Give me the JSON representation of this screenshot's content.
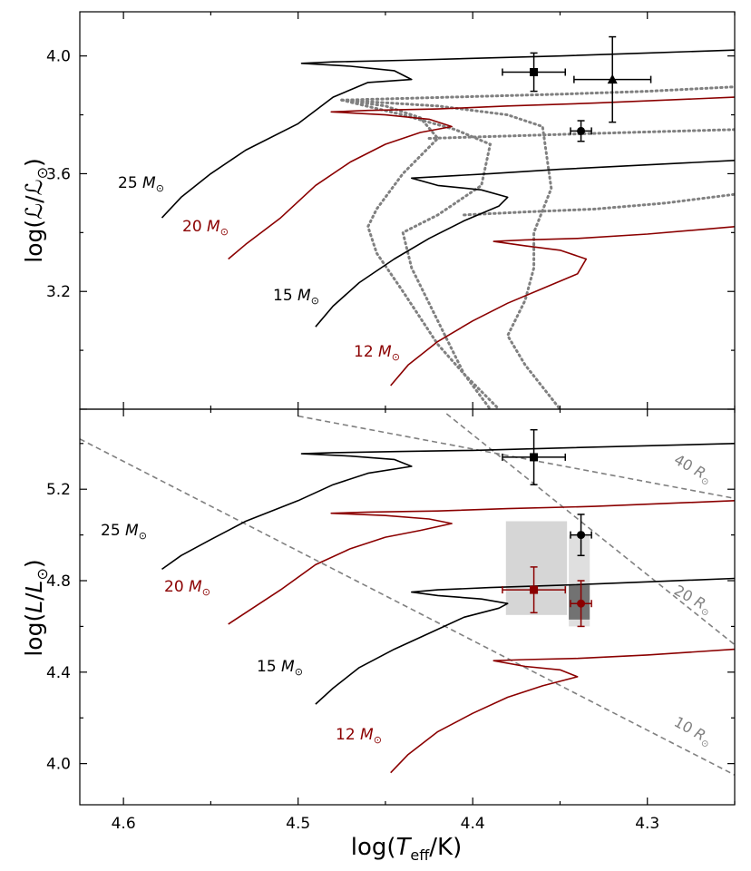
{
  "chart_data": [
    {
      "type": "scatter",
      "panel": "top",
      "ylabel": "log(ℒ/ℒ⊙)",
      "xlim": [
        4.625,
        4.25
      ],
      "ylim": [
        2.8,
        4.15
      ],
      "yticks": [
        "3.2",
        "3.6",
        "4.0"
      ],
      "tracks": [
        {
          "label": "25",
          "color": "#000000",
          "points": [
            [
              4.578,
              3.45
            ],
            [
              4.567,
              3.52
            ],
            [
              4.55,
              3.6
            ],
            [
              4.53,
              3.68
            ],
            [
              4.5,
              3.77
            ],
            [
              4.48,
              3.86
            ],
            [
              4.46,
              3.91
            ],
            [
              4.435,
              3.92
            ],
            [
              4.445,
              3.95
            ],
            [
              4.47,
              3.965
            ],
            [
              4.498,
              3.975
            ],
            [
              4.48,
              3.98
            ],
            [
              4.44,
              3.985
            ],
            [
              4.4,
              3.992
            ],
            [
              4.35,
              4.0
            ],
            [
              4.3,
              4.01
            ],
            [
              4.25,
              4.02
            ]
          ]
        },
        {
          "label": "20",
          "color": "#8b0000",
          "points": [
            [
              4.54,
              3.31
            ],
            [
              4.53,
              3.36
            ],
            [
              4.51,
              3.45
            ],
            [
              4.49,
              3.56
            ],
            [
              4.47,
              3.64
            ],
            [
              4.45,
              3.7
            ],
            [
              4.43,
              3.74
            ],
            [
              4.412,
              3.76
            ],
            [
              4.425,
              3.785
            ],
            [
              4.45,
              3.8
            ],
            [
              4.481,
              3.81
            ],
            [
              4.46,
              3.815
            ],
            [
              4.42,
              3.82
            ],
            [
              4.38,
              3.83
            ],
            [
              4.33,
              3.84
            ],
            [
              4.25,
              3.86
            ]
          ]
        },
        {
          "label": "15",
          "color": "#000000",
          "points": [
            [
              4.49,
              3.08
            ],
            [
              4.48,
              3.15
            ],
            [
              4.465,
              3.23
            ],
            [
              4.445,
              3.31
            ],
            [
              4.425,
              3.38
            ],
            [
              4.405,
              3.44
            ],
            [
              4.385,
              3.49
            ],
            [
              4.38,
              3.52
            ],
            [
              4.395,
              3.545
            ],
            [
              4.42,
              3.56
            ],
            [
              4.435,
              3.585
            ],
            [
              4.42,
              3.59
            ],
            [
              4.39,
              3.6
            ],
            [
              4.35,
              3.615
            ],
            [
              4.3,
              3.63
            ],
            [
              4.25,
              3.645
            ]
          ]
        },
        {
          "label": "12",
          "color": "#8b0000",
          "points": [
            [
              4.447,
              2.88
            ],
            [
              4.437,
              2.95
            ],
            [
              4.42,
              3.03
            ],
            [
              4.4,
              3.1
            ],
            [
              4.38,
              3.16
            ],
            [
              4.36,
              3.21
            ],
            [
              4.34,
              3.26
            ],
            [
              4.335,
              3.31
            ],
            [
              4.35,
              3.34
            ],
            [
              4.37,
              3.355
            ],
            [
              4.388,
              3.37
            ],
            [
              4.37,
              3.375
            ],
            [
              4.34,
              3.38
            ],
            [
              4.3,
              3.395
            ],
            [
              4.25,
              3.42
            ]
          ]
        }
      ],
      "dotted_lines": [
        [
          [
            4.475,
            3.85
          ],
          [
            4.45,
            3.83
          ],
          [
            4.43,
            3.79
          ],
          [
            4.42,
            3.72
          ],
          [
            4.44,
            3.6
          ],
          [
            4.455,
            3.48
          ],
          [
            4.46,
            3.42
          ],
          [
            4.455,
            3.33
          ],
          [
            4.44,
            3.2
          ],
          [
            4.42,
            3.02
          ],
          [
            4.405,
            2.92
          ],
          [
            4.39,
            2.8
          ]
        ],
        [
          [
            4.475,
            3.85
          ],
          [
            4.44,
            3.8
          ],
          [
            4.41,
            3.75
          ],
          [
            4.39,
            3.7
          ],
          [
            4.395,
            3.56
          ],
          [
            4.42,
            3.46
          ],
          [
            4.44,
            3.4
          ],
          [
            4.435,
            3.28
          ],
          [
            4.42,
            3.1
          ],
          [
            4.405,
            2.92
          ],
          [
            4.385,
            2.8
          ]
        ],
        [
          [
            4.475,
            3.85
          ],
          [
            4.42,
            3.83
          ],
          [
            4.38,
            3.8
          ],
          [
            4.36,
            3.76
          ],
          [
            4.355,
            3.55
          ],
          [
            4.365,
            3.4
          ],
          [
            4.365,
            3.28
          ],
          [
            4.37,
            3.17
          ],
          [
            4.38,
            3.05
          ],
          [
            4.37,
            2.95
          ],
          [
            4.35,
            2.8
          ]
        ],
        [
          [
            4.475,
            3.85
          ],
          [
            4.4,
            3.862
          ],
          [
            4.35,
            3.87
          ],
          [
            4.3,
            3.88
          ],
          [
            4.25,
            3.895
          ]
        ],
        [
          [
            4.425,
            3.72
          ],
          [
            4.38,
            3.728
          ],
          [
            4.34,
            3.735
          ],
          [
            4.3,
            3.742
          ],
          [
            4.25,
            3.75
          ]
        ],
        [
          [
            4.405,
            3.46
          ],
          [
            4.37,
            3.47
          ],
          [
            4.33,
            3.48
          ],
          [
            4.29,
            3.5
          ],
          [
            4.25,
            3.53
          ]
        ]
      ],
      "points": [
        {
          "marker": "square",
          "x": 4.365,
          "y": 3.945,
          "xerr": 0.018,
          "yerr": 0.065
        },
        {
          "marker": "triangle",
          "x": 4.32,
          "y": 3.92,
          "xerr": 0.022,
          "yerr": 0.145
        },
        {
          "marker": "circle",
          "x": 4.338,
          "y": 3.745,
          "xerr": 0.006,
          "yerr": 0.035
        }
      ]
    },
    {
      "type": "scatter",
      "panel": "bottom",
      "ylabel": "log(L/L⊙)",
      "xlabel": "log(Teff/K)",
      "xlim": [
        4.625,
        4.25
      ],
      "ylim": [
        3.82,
        5.55
      ],
      "xticks": [
        "4.6",
        "4.5",
        "4.4",
        "4.3"
      ],
      "yticks": [
        "4.0",
        "4.4",
        "4.8",
        "5.2"
      ],
      "tracks": [
        {
          "label": "25",
          "color": "#000000",
          "points": [
            [
              4.578,
              4.85
            ],
            [
              4.567,
              4.91
            ],
            [
              4.55,
              4.98
            ],
            [
              4.53,
              5.06
            ],
            [
              4.5,
              5.15
            ],
            [
              4.48,
              5.22
            ],
            [
              4.46,
              5.27
            ],
            [
              4.435,
              5.3
            ],
            [
              4.445,
              5.33
            ],
            [
              4.47,
              5.345
            ],
            [
              4.498,
              5.355
            ],
            [
              4.48,
              5.36
            ],
            [
              4.44,
              5.365
            ],
            [
              4.4,
              5.37
            ],
            [
              4.35,
              5.38
            ],
            [
              4.3,
              5.39
            ],
            [
              4.25,
              5.4
            ]
          ]
        },
        {
          "label": "20",
          "color": "#8b0000",
          "points": [
            [
              4.54,
              4.61
            ],
            [
              4.53,
              4.66
            ],
            [
              4.51,
              4.76
            ],
            [
              4.49,
              4.87
            ],
            [
              4.47,
              4.94
            ],
            [
              4.45,
              4.99
            ],
            [
              4.43,
              5.02
            ],
            [
              4.412,
              5.05
            ],
            [
              4.425,
              5.07
            ],
            [
              4.45,
              5.085
            ],
            [
              4.481,
              5.095
            ],
            [
              4.46,
              5.1
            ],
            [
              4.42,
              5.105
            ],
            [
              4.38,
              5.115
            ],
            [
              4.33,
              5.125
            ],
            [
              4.25,
              5.15
            ]
          ]
        },
        {
          "label": "15",
          "color": "#000000",
          "points": [
            [
              4.49,
              4.26
            ],
            [
              4.48,
              4.33
            ],
            [
              4.465,
              4.42
            ],
            [
              4.445,
              4.5
            ],
            [
              4.425,
              4.57
            ],
            [
              4.405,
              4.64
            ],
            [
              4.385,
              4.68
            ],
            [
              4.38,
              4.7
            ],
            [
              4.395,
              4.72
            ],
            [
              4.42,
              4.735
            ],
            [
              4.435,
              4.75
            ],
            [
              4.42,
              4.76
            ],
            [
              4.39,
              4.77
            ],
            [
              4.35,
              4.78
            ],
            [
              4.3,
              4.795
            ],
            [
              4.25,
              4.81
            ]
          ]
        },
        {
          "label": "12",
          "color": "#8b0000",
          "points": [
            [
              4.447,
              3.96
            ],
            [
              4.437,
              4.04
            ],
            [
              4.42,
              4.14
            ],
            [
              4.4,
              4.22
            ],
            [
              4.38,
              4.29
            ],
            [
              4.36,
              4.34
            ],
            [
              4.34,
              4.38
            ],
            [
              4.35,
              4.41
            ],
            [
              4.37,
              4.425
            ],
            [
              4.388,
              4.45
            ],
            [
              4.37,
              4.455
            ],
            [
              4.34,
              4.46
            ],
            [
              4.3,
              4.475
            ],
            [
              4.25,
              4.5
            ]
          ]
        }
      ],
      "radius_lines": [
        {
          "label": "40",
          "points": [
            [
              4.5,
              5.52
            ],
            [
              4.25,
              5.16
            ]
          ]
        },
        {
          "label": "20",
          "points": [
            [
              4.415,
              5.53
            ],
            [
              4.25,
              4.52
            ]
          ]
        },
        {
          "label": "10",
          "points": [
            [
              4.625,
              5.42
            ],
            [
              4.25,
              3.95
            ]
          ]
        }
      ],
      "boxes": [
        {
          "fill": "#c8c8c8",
          "opacity": 0.75,
          "x": [
            4.381,
            4.346
          ],
          "y": [
            4.65,
            5.06
          ]
        },
        {
          "fill": "#dcdcdc",
          "opacity": 0.9,
          "x": [
            4.345,
            4.333
          ],
          "y": [
            4.6,
            5.0
          ]
        },
        {
          "fill": "#5f5f5f",
          "opacity": 0.85,
          "x": [
            4.345,
            4.333
          ],
          "y": [
            4.63,
            4.78
          ]
        }
      ],
      "points": [
        {
          "marker": "square",
          "color": "#000000",
          "x": 4.365,
          "y": 5.34,
          "xerr": 0.018,
          "yerr": 0.12
        },
        {
          "marker": "circle",
          "color": "#000000",
          "x": 4.338,
          "y": 5.0,
          "xerr": 0.006,
          "yerr": 0.09
        },
        {
          "marker": "square",
          "color": "#8b0000",
          "x": 4.365,
          "y": 4.76,
          "xerr": 0.018,
          "yerr": 0.1
        },
        {
          "marker": "circle",
          "color": "#8b0000",
          "x": 4.338,
          "y": 4.7,
          "xerr": 0.006,
          "yerr": 0.1
        }
      ]
    }
  ]
}
